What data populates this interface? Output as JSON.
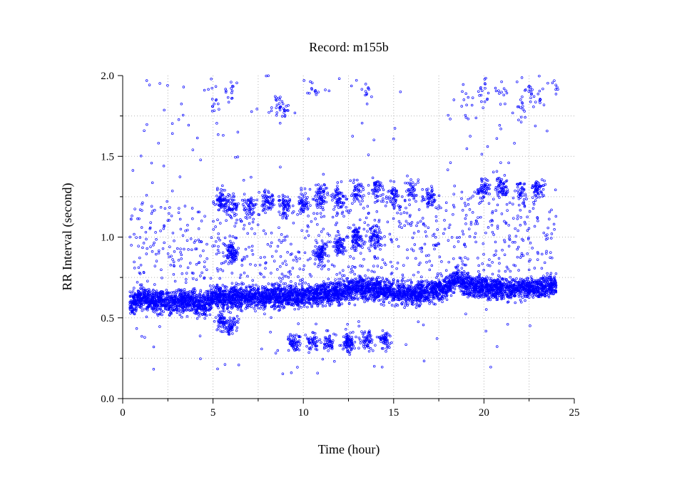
{
  "chart_data": {
    "type": "scatter",
    "title": "Record:  m155b",
    "xlabel": "Time (hour)",
    "ylabel": "RR Interval (second)",
    "xlim": [
      0,
      25
    ],
    "ylim": [
      0,
      2.0
    ],
    "x_ticks": [
      0,
      5,
      10,
      15,
      20,
      25
    ],
    "x_tick_labels": [
      "0",
      "5",
      "10",
      "15",
      "20",
      "25"
    ],
    "x_minor_ticks": [
      2.5,
      7.5,
      12.5,
      17.5,
      22.5
    ],
    "y_ticks": [
      0.0,
      0.5,
      1.0,
      1.5,
      2.0
    ],
    "y_tick_labels": [
      "0.0",
      "0.5",
      "1.0",
      "1.5",
      "2.0"
    ],
    "y_minor_ticks": [
      0.25,
      0.75,
      1.25,
      1.75
    ],
    "grid": true,
    "marker": "open-circle",
    "color": "#0000ff",
    "series": [
      {
        "points_description": "RR interval samples over ~24 hours",
        "main_band": [
          [
            0.5,
            0.6
          ],
          [
            1.0,
            0.62
          ],
          [
            2.0,
            0.6
          ],
          [
            3.0,
            0.6
          ],
          [
            4.0,
            0.6
          ],
          [
            4.5,
            0.57
          ],
          [
            5.0,
            0.63
          ],
          [
            6.0,
            0.63
          ],
          [
            7.0,
            0.63
          ],
          [
            8.0,
            0.63
          ],
          [
            9.0,
            0.64
          ],
          [
            10.0,
            0.64
          ],
          [
            11.0,
            0.65
          ],
          [
            12.0,
            0.66
          ],
          [
            13.0,
            0.69
          ],
          [
            14.0,
            0.68
          ],
          [
            15.0,
            0.66
          ],
          [
            16.0,
            0.65
          ],
          [
            17.0,
            0.66
          ],
          [
            18.0,
            0.69
          ],
          [
            18.5,
            0.76
          ],
          [
            19.0,
            0.7
          ],
          [
            20.0,
            0.69
          ],
          [
            21.0,
            0.68
          ],
          [
            22.0,
            0.68
          ],
          [
            23.0,
            0.69
          ],
          [
            24.0,
            0.7
          ]
        ],
        "upper_cluster_1_2_to_1_35": [
          [
            5.5,
            1.22
          ],
          [
            6.0,
            1.2
          ],
          [
            7.0,
            1.18
          ],
          [
            8.0,
            1.22
          ],
          [
            9.0,
            1.2
          ],
          [
            10.0,
            1.22
          ],
          [
            11.0,
            1.25
          ],
          [
            12.0,
            1.25
          ],
          [
            13.0,
            1.28
          ],
          [
            14.0,
            1.3
          ],
          [
            15.0,
            1.25
          ],
          [
            16.0,
            1.3
          ],
          [
            17.0,
            1.25
          ],
          [
            20.0,
            1.3
          ],
          [
            21.0,
            1.3
          ],
          [
            22.0,
            1.28
          ],
          [
            23.0,
            1.3
          ]
        ],
        "mid_cluster_0_85_to_1_05": [
          [
            6.0,
            0.9
          ],
          [
            11.0,
            0.9
          ],
          [
            12.0,
            0.95
          ],
          [
            13.0,
            1.0
          ],
          [
            14.0,
            1.0
          ]
        ],
        "lower_cluster_0_3_to_0_5": [
          [
            5.5,
            0.48
          ],
          [
            6.0,
            0.45
          ],
          [
            9.5,
            0.35
          ],
          [
            10.5,
            0.35
          ],
          [
            11.5,
            0.35
          ],
          [
            12.5,
            0.35
          ],
          [
            13.5,
            0.36
          ],
          [
            14.5,
            0.36
          ]
        ],
        "outliers_high_1_6_to_2_0": [
          [
            5.0,
            1.84
          ],
          [
            6.0,
            1.9
          ],
          [
            8.5,
            1.85
          ],
          [
            9.0,
            1.8
          ],
          [
            10.5,
            1.9
          ],
          [
            13.5,
            1.9
          ],
          [
            19.0,
            1.83
          ],
          [
            20.0,
            1.9
          ],
          [
            21.0,
            1.88
          ],
          [
            22.0,
            1.8
          ],
          [
            22.5,
            1.9
          ],
          [
            23.0,
            1.88
          ],
          [
            24.0,
            1.95
          ]
        ]
      }
    ]
  }
}
